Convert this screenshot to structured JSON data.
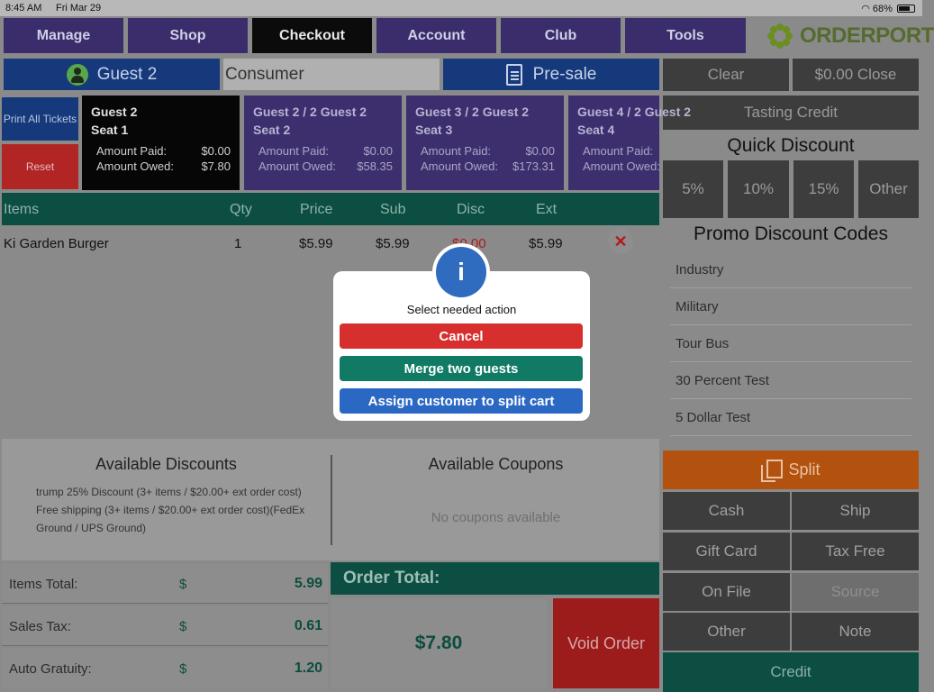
{
  "status_bar": {
    "time": "8:45 AM",
    "date": "Fri Mar 29",
    "battery": "68%"
  },
  "nav": [
    {
      "label": "Manage"
    },
    {
      "label": "Shop"
    },
    {
      "label": "Checkout"
    },
    {
      "label": "Account"
    },
    {
      "label": "Club"
    },
    {
      "label": "Tools"
    }
  ],
  "logo": {
    "text": "ORDERPORT"
  },
  "guest_button": {
    "label": "Guest 2"
  },
  "customer_type": "Consumer",
  "presale_button": {
    "label": "Pre-sale"
  },
  "top_right": {
    "clear_label": "Clear",
    "close_label": "$0.00 Close",
    "tasting_credit_label": "Tasting Credit"
  },
  "quick_discount": {
    "title": "Quick Discount",
    "options": [
      "5%",
      "10%",
      "15%",
      "Other"
    ]
  },
  "promo_codes": {
    "title": "Promo Discount Codes",
    "items": [
      "Industry",
      "Military",
      "Tour Bus",
      "30 Percent Test",
      "5 Dollar Test"
    ]
  },
  "left_buttons": {
    "print_all": "Print All Tickets",
    "reset": "Reset"
  },
  "guests": [
    {
      "name": "Guest 2",
      "seat": "Seat 1",
      "paid_label": "Amount Paid:",
      "paid": "$0.00",
      "owed_label": "Amount Owed:",
      "owed": "$7.80"
    },
    {
      "name": "Guest 2 / 2 Guest 2",
      "seat": "Seat 2",
      "paid_label": "Amount Paid:",
      "paid": "$0.00",
      "owed_label": "Amount Owed:",
      "owed": "$58.35"
    },
    {
      "name": "Guest 3 / 2 Guest 2",
      "seat": "Seat 3",
      "paid_label": "Amount Paid:",
      "paid": "$0.00",
      "owed_label": "Amount Owed:",
      "owed": "$173.31"
    },
    {
      "name": "Guest 4 / 2 Guest 2",
      "seat": "Seat 4",
      "paid_label": "Amount Paid:",
      "paid": "",
      "owed_label": "Amount Owed:",
      "owed": ""
    }
  ],
  "items_table": {
    "headers": [
      "Items",
      "Qty",
      "Price",
      "Sub",
      "Disc",
      "Ext"
    ],
    "rows": [
      {
        "item": "Ki Garden Burger",
        "qty": "1",
        "price": "$5.99",
        "sub": "$5.99",
        "disc": "$0.00",
        "ext": "$5.99"
      }
    ]
  },
  "available_discounts": {
    "title": "Available Discounts",
    "lines": [
      "trump 25% Discount (3+ items / $20.00+ ext order cost)",
      "Free shipping (3+ items / $20.00+ ext order cost)(FedEx",
      "Ground / UPS Ground)"
    ]
  },
  "available_coupons": {
    "title": "Available Coupons",
    "empty_text": "No coupons available"
  },
  "totals": [
    {
      "label": "Items Total:",
      "symbol": "$",
      "value": "5.99"
    },
    {
      "label": "Sales Tax:",
      "symbol": "$",
      "value": "0.61"
    },
    {
      "label": "Auto Gratuity:",
      "symbol": "$",
      "value": "1.20"
    }
  ],
  "order_total": {
    "label": "Order Total:",
    "value": "$7.80"
  },
  "void_order_label": "Void Order",
  "split_label": "Split",
  "payment": {
    "cash": "Cash",
    "ship": "Ship",
    "gift_card": "Gift Card",
    "tax_free": "Tax Free",
    "on_file": "On File",
    "source": "Source",
    "other": "Other",
    "note": "Note",
    "credit": "Credit"
  },
  "modal": {
    "title": "Select needed action",
    "cancel": "Cancel",
    "merge": "Merge two guests",
    "assign": "Assign customer to split cart",
    "colors": {
      "cancel": "#d72e2e",
      "merge": "#117a65",
      "assign": "#2b68c4"
    }
  }
}
